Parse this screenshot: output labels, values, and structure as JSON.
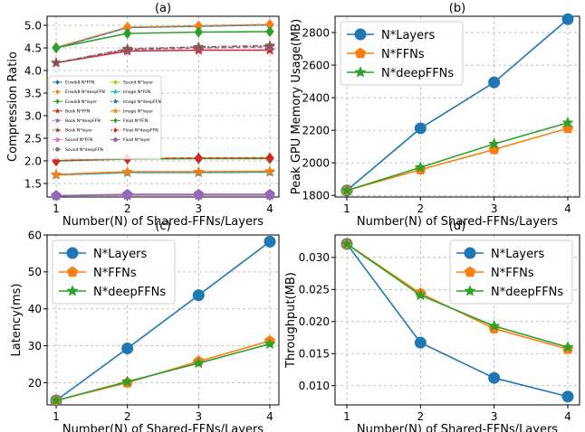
{
  "chart_data": [
    {
      "panel": "(a)",
      "type": "line",
      "xlabel": "Number(N) of Shared-FFNs/Layers",
      "ylabel": "Compression Ratio",
      "x": [
        1,
        2,
        3,
        4
      ],
      "xticks": [
        "1",
        "2",
        "3",
        "4"
      ],
      "ylim": [
        1.2,
        5.2
      ],
      "yticks": [
        "1.5",
        "2.0",
        "2.5",
        "3.0",
        "3.5",
        "4.0",
        "4.5",
        "5.0"
      ],
      "grid": true,
      "legend": "center-left",
      "legend_columns": 2,
      "series": [
        {
          "name": "Enwik8 N*FFN",
          "color": "#1f77b4",
          "marker": "diamond",
          "dash": "solid",
          "values": [
            4.5,
            4.95,
            4.98,
            5.01
          ]
        },
        {
          "name": "Enwik8 N*deepFFN",
          "color": "#ff7f0e",
          "marker": "diamond",
          "dash": "dashed",
          "values": [
            4.51,
            4.96,
            4.99,
            5.02
          ]
        },
        {
          "name": "Enwik8 N*layer",
          "color": "#2ca02c",
          "marker": "diamond",
          "dash": "solid",
          "values": [
            4.5,
            4.82,
            4.85,
            4.86
          ]
        },
        {
          "name": "Book N*FFN",
          "color": "#d62728",
          "marker": "star",
          "dash": "solid",
          "values": [
            4.17,
            4.43,
            4.45,
            4.45
          ]
        },
        {
          "name": "Book N*deepFFN",
          "color": "#9467bd",
          "marker": "star",
          "dash": "dashed",
          "values": [
            4.17,
            4.46,
            4.5,
            4.52
          ]
        },
        {
          "name": "Book N*layer",
          "color": "#8c564b",
          "marker": "star",
          "dash": "dashdot",
          "values": [
            4.17,
            4.48,
            4.52,
            4.55
          ]
        },
        {
          "name": "Sound N*FFN",
          "color": "#e377c2",
          "marker": "pentagon",
          "dash": "solid",
          "values": [
            1.23,
            1.24,
            1.24,
            1.24
          ]
        },
        {
          "name": "Sound N*deepFFN",
          "color": "#7f7f7f",
          "marker": "pentagon",
          "dash": "dashed",
          "values": [
            1.23,
            1.25,
            1.25,
            1.25
          ]
        },
        {
          "name": "Sound N*layer",
          "color": "#bcbd22",
          "marker": "diamond",
          "dash": "solid",
          "values": [
            2.0,
            2.06,
            2.06,
            2.07
          ]
        },
        {
          "name": "Image N*FFN",
          "color": "#17becf",
          "marker": "star",
          "dash": "solid",
          "values": [
            1.69,
            1.74,
            1.74,
            1.75
          ]
        },
        {
          "name": "Image N*deepFFN",
          "color": "#1f77b4",
          "marker": "star",
          "dash": "dashed",
          "values": [
            1.69,
            1.75,
            1.75,
            1.76
          ]
        },
        {
          "name": "Image N*layer",
          "color": "#ff7f0e",
          "marker": "star",
          "dash": "solid",
          "values": [
            1.7,
            1.76,
            1.76,
            1.77
          ]
        },
        {
          "name": "Float N*FFN",
          "color": "#2ca02c",
          "marker": "diamond",
          "dash": "solid",
          "values": [
            2.0,
            2.04,
            2.05,
            2.05
          ]
        },
        {
          "name": "Float N*deepFFN",
          "color": "#d62728",
          "marker": "diamond",
          "dash": "dashed",
          "values": [
            2.0,
            2.05,
            2.06,
            2.06
          ]
        },
        {
          "name": "Float N*layer",
          "color": "#9467bd",
          "marker": "pentagon",
          "dash": "solid",
          "values": [
            1.23,
            1.26,
            1.26,
            1.26
          ]
        }
      ]
    },
    {
      "panel": "(b)",
      "type": "line",
      "xlabel": "Number(N) of Shared-FFNs/Layers",
      "ylabel": "Peak GPU Memory Usage(MB)",
      "x": [
        1,
        2,
        3,
        4
      ],
      "xticks": [
        "1",
        "2",
        "3",
        "4"
      ],
      "ylim": [
        1790,
        2900
      ],
      "yticks": [
        "1800",
        "2000",
        "2200",
        "2400",
        "2600",
        "2800"
      ],
      "grid": true,
      "legend": "top-left",
      "legend_columns": 1,
      "series": [
        {
          "name": "N*Layers",
          "color": "#1f77b4",
          "marker": "circle",
          "dash": "solid",
          "values": [
            1830,
            2212,
            2494,
            2882
          ]
        },
        {
          "name": "N*FFNs",
          "color": "#ff7f0e",
          "marker": "pentagon",
          "dash": "solid",
          "values": [
            1830,
            1958,
            2082,
            2212
          ]
        },
        {
          "name": "N*deepFFNs",
          "color": "#2ca02c",
          "marker": "star",
          "dash": "solid",
          "values": [
            1830,
            1972,
            2116,
            2246
          ]
        }
      ]
    },
    {
      "panel": "(c)",
      "type": "line",
      "xlabel": "Number(N) of Shared-FFNs/Layers",
      "ylabel": "Latency(ms)",
      "x": [
        1,
        2,
        3,
        4
      ],
      "xticks": [
        "1",
        "2",
        "3",
        "4"
      ],
      "ylim": [
        14,
        60
      ],
      "yticks": [
        "20",
        "30",
        "40",
        "50",
        "60"
      ],
      "grid": true,
      "legend": "top-left",
      "legend_columns": 1,
      "series": [
        {
          "name": "N*Layers",
          "color": "#1f77b4",
          "marker": "circle",
          "dash": "solid",
          "values": [
            15.2,
            29.3,
            43.7,
            58.2
          ]
        },
        {
          "name": "N*FFNs",
          "color": "#ff7f0e",
          "marker": "pentagon",
          "dash": "solid",
          "values": [
            15.2,
            20.0,
            25.8,
            31.3
          ]
        },
        {
          "name": "N*deepFFNs",
          "color": "#2ca02c",
          "marker": "star",
          "dash": "solid",
          "values": [
            15.2,
            20.3,
            25.3,
            30.5
          ]
        }
      ]
    },
    {
      "panel": "(d)",
      "type": "line",
      "xlabel": "Number(N) of Shared-FFNs/Layers",
      "ylabel": "Throughput(MB)",
      "x": [
        1,
        2,
        3,
        4
      ],
      "xticks": [
        "1",
        "2",
        "3",
        "4"
      ],
      "ylim": [
        0.007,
        0.0335
      ],
      "yticks": [
        "0.010",
        "0.015",
        "0.020",
        "0.025",
        "0.030"
      ],
      "grid": true,
      "legend": "top-right",
      "legend_columns": 1,
      "series": [
        {
          "name": "N*Layers",
          "color": "#1f77b4",
          "marker": "circle",
          "dash": "solid",
          "values": [
            0.0321,
            0.0167,
            0.0112,
            0.0083
          ]
        },
        {
          "name": "N*FFNs",
          "color": "#ff7f0e",
          "marker": "pentagon",
          "dash": "solid",
          "values": [
            0.0321,
            0.0244,
            0.0189,
            0.0157
          ]
        },
        {
          "name": "N*deepFFNs",
          "color": "#2ca02c",
          "marker": "star",
          "dash": "solid",
          "values": [
            0.0321,
            0.0241,
            0.0193,
            0.016
          ]
        }
      ]
    }
  ]
}
